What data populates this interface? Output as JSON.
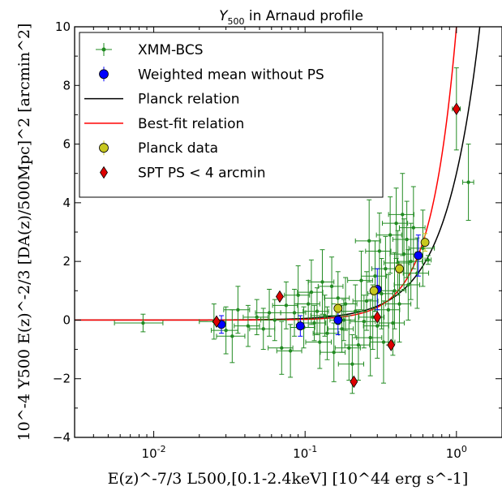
{
  "chart_data": {
    "type": "scatter",
    "title": "Y500 in Arnaud profile",
    "xlabel": "E(z)^-7/3 L500,[0.1-2.4keV] [10^44 erg s^-1]",
    "ylabel": "10^-4 Y500 E(z)^-2/3 [DA(z)/500Mpc]^2 [arcmin^2]",
    "x_scale": "log",
    "xlim": [
      0.003,
      2.0
    ],
    "ylim": [
      -4,
      10
    ],
    "x_ticks": [
      0.01,
      0.1,
      1.0
    ],
    "x_tick_labels": [
      "10^-2",
      "10^-1",
      "10^0"
    ],
    "y_ticks": [
      -4,
      -2,
      0,
      2,
      4,
      6,
      8,
      10
    ],
    "y_tick_labels": [
      "−4",
      "−2",
      "0",
      "2",
      "4",
      "6",
      "8",
      "10"
    ],
    "legend_position": "top-left",
    "series": [
      {
        "name": "XMM-BCS",
        "color": "#228B22",
        "marker": "dot",
        "points": [
          {
            "x": 0.0085,
            "y": -0.1,
            "xerr": 0.003,
            "yerr": 0.3
          },
          {
            "x": 0.025,
            "y": -0.05,
            "xerr": 0.005,
            "yerr": 0.6
          },
          {
            "x": 0.03,
            "y": -0.35,
            "xerr": 0.006,
            "yerr": 0.8
          },
          {
            "x": 0.033,
            "y": -0.55,
            "xerr": 0.007,
            "yerr": 0.9
          },
          {
            "x": 0.036,
            "y": 0.35,
            "xerr": 0.007,
            "yerr": 0.8
          },
          {
            "x": 0.042,
            "y": -0.2,
            "xerr": 0.008,
            "yerr": 0.7
          },
          {
            "x": 0.048,
            "y": 0.1,
            "xerr": 0.009,
            "yerr": 0.6
          },
          {
            "x": 0.053,
            "y": -0.3,
            "xerr": 0.01,
            "yerr": 0.7
          },
          {
            "x": 0.058,
            "y": 0.25,
            "xerr": 0.011,
            "yerr": 0.8
          },
          {
            "x": 0.063,
            "y": 0.0,
            "xerr": 0.012,
            "yerr": 0.7
          },
          {
            "x": 0.07,
            "y": -0.95,
            "xerr": 0.013,
            "yerr": 0.9
          },
          {
            "x": 0.075,
            "y": 0.5,
            "xerr": 0.014,
            "yerr": 0.8
          },
          {
            "x": 0.08,
            "y": -1.05,
            "xerr": 0.015,
            "yerr": 0.9
          },
          {
            "x": 0.085,
            "y": 0.25,
            "xerr": 0.016,
            "yerr": 0.8
          },
          {
            "x": 0.09,
            "y": 0.85,
            "xerr": 0.017,
            "yerr": 1.0
          },
          {
            "x": 0.098,
            "y": -0.25,
            "xerr": 0.018,
            "yerr": 0.7
          },
          {
            "x": 0.105,
            "y": 0.55,
            "xerr": 0.02,
            "yerr": 0.8
          },
          {
            "x": 0.11,
            "y": 0.95,
            "xerr": 0.021,
            "yerr": 1.1
          },
          {
            "x": 0.115,
            "y": -0.1,
            "xerr": 0.022,
            "yerr": 0.6
          },
          {
            "x": 0.12,
            "y": 0.3,
            "xerr": 0.023,
            "yerr": 0.8
          },
          {
            "x": 0.125,
            "y": -0.75,
            "xerr": 0.024,
            "yerr": 0.9
          },
          {
            "x": 0.13,
            "y": 1.3,
            "xerr": 0.025,
            "yerr": 1.1
          },
          {
            "x": 0.135,
            "y": 0.15,
            "xerr": 0.026,
            "yerr": 0.7
          },
          {
            "x": 0.14,
            "y": -0.45,
            "xerr": 0.027,
            "yerr": 0.9
          },
          {
            "x": 0.15,
            "y": 1.15,
            "xerr": 0.028,
            "yerr": 1.0
          },
          {
            "x": 0.155,
            "y": -1.1,
            "xerr": 0.029,
            "yerr": 1.0
          },
          {
            "x": 0.165,
            "y": 0.75,
            "xerr": 0.031,
            "yerr": 0.9
          },
          {
            "x": 0.175,
            "y": -0.3,
            "xerr": 0.033,
            "yerr": 0.8
          },
          {
            "x": 0.18,
            "y": 0.0,
            "xerr": 0.034,
            "yerr": 0.7
          },
          {
            "x": 0.185,
            "y": 0.55,
            "xerr": 0.035,
            "yerr": 0.9
          },
          {
            "x": 0.195,
            "y": -0.95,
            "xerr": 0.037,
            "yerr": 1.1
          },
          {
            "x": 0.205,
            "y": -1.5,
            "xerr": 0.039,
            "yerr": 1.0
          },
          {
            "x": 0.215,
            "y": 0.3,
            "xerr": 0.04,
            "yerr": 0.9
          },
          {
            "x": 0.225,
            "y": -0.85,
            "xerr": 0.042,
            "yerr": 1.2
          },
          {
            "x": 0.235,
            "y": 1.35,
            "xerr": 0.044,
            "yerr": 1.0
          },
          {
            "x": 0.245,
            "y": -0.05,
            "xerr": 0.046,
            "yerr": 0.9
          },
          {
            "x": 0.255,
            "y": 0.65,
            "xerr": 0.048,
            "yerr": 1.0
          },
          {
            "x": 0.265,
            "y": 2.7,
            "xerr": 0.05,
            "yerr": 1.4
          },
          {
            "x": 0.27,
            "y": -0.6,
            "xerr": 0.051,
            "yerr": 1.3
          },
          {
            "x": 0.28,
            "y": 0.1,
            "xerr": 0.053,
            "yerr": 1.1
          },
          {
            "x": 0.29,
            "y": 1.5,
            "xerr": 0.055,
            "yerr": 1.2
          },
          {
            "x": 0.3,
            "y": -0.2,
            "xerr": 0.057,
            "yerr": 1.1
          },
          {
            "x": 0.31,
            "y": 2.35,
            "xerr": 0.059,
            "yerr": 1.3
          },
          {
            "x": 0.32,
            "y": 0.9,
            "xerr": 0.06,
            "yerr": 1.2
          },
          {
            "x": 0.33,
            "y": -0.75,
            "xerr": 0.062,
            "yerr": 1.4
          },
          {
            "x": 0.34,
            "y": 1.75,
            "xerr": 0.064,
            "yerr": 1.1
          },
          {
            "x": 0.355,
            "y": 0.35,
            "xerr": 0.067,
            "yerr": 1.2
          },
          {
            "x": 0.365,
            "y": 2.9,
            "xerr": 0.069,
            "yerr": 1.3
          },
          {
            "x": 0.38,
            "y": -0.1,
            "xerr": 0.072,
            "yerr": 1.1
          },
          {
            "x": 0.39,
            "y": 1.0,
            "xerr": 0.074,
            "yerr": 1.3
          },
          {
            "x": 0.4,
            "y": 3.3,
            "xerr": 0.076,
            "yerr": 1.2
          },
          {
            "x": 0.41,
            "y": 1.95,
            "xerr": 0.078,
            "yerr": 1.1
          },
          {
            "x": 0.42,
            "y": 0.55,
            "xerr": 0.08,
            "yerr": 1.3
          },
          {
            "x": 0.44,
            "y": 3.6,
            "xerr": 0.084,
            "yerr": 1.4
          },
          {
            "x": 0.45,
            "y": 2.25,
            "xerr": 0.086,
            "yerr": 1.2
          },
          {
            "x": 0.47,
            "y": 2.75,
            "xerr": 0.09,
            "yerr": 1.3
          },
          {
            "x": 0.48,
            "y": 1.2,
            "xerr": 0.092,
            "yerr": 1.2
          },
          {
            "x": 0.5,
            "y": 2.0,
            "xerr": 0.095,
            "yerr": 1.3
          },
          {
            "x": 0.52,
            "y": 3.15,
            "xerr": 0.1,
            "yerr": 1.4
          },
          {
            "x": 0.55,
            "y": 1.6,
            "xerr": 0.105,
            "yerr": 1.2
          },
          {
            "x": 0.6,
            "y": 2.45,
            "xerr": 0.115,
            "yerr": 1.3
          },
          {
            "x": 0.65,
            "y": 2.05,
            "xerr": 0.03,
            "yerr": 0.15
          },
          {
            "x": 1.0,
            "y": 7.2,
            "xerr": 0.06,
            "yerr": 1.4
          },
          {
            "x": 1.2,
            "y": 4.7,
            "xerr": 0.1,
            "yerr": 1.3
          }
        ]
      },
      {
        "name": "Weighted mean without PS",
        "color": "#0000ff",
        "marker": "circle",
        "points": [
          {
            "x": 0.028,
            "y": -0.15,
            "yerr": 0.3
          },
          {
            "x": 0.093,
            "y": -0.2,
            "yerr": 0.35
          },
          {
            "x": 0.165,
            "y": 0.0,
            "yerr": 0.5
          },
          {
            "x": 0.3,
            "y": 1.05,
            "yerr": 0.7
          },
          {
            "x": 0.56,
            "y": 2.2,
            "yerr": 0.7
          }
        ]
      },
      {
        "name": "Planck data",
        "color": "#c8c81e",
        "marker": "circle",
        "points": [
          {
            "x": 0.165,
            "y": 0.4,
            "yerr": 0.15
          },
          {
            "x": 0.285,
            "y": 1.0,
            "yerr": 0.15
          },
          {
            "x": 0.42,
            "y": 1.75,
            "yerr": 0.15
          },
          {
            "x": 0.62,
            "y": 2.65,
            "yerr": 0.3
          }
        ]
      },
      {
        "name": "SPT PS < 4 arcmin",
        "color": "#dd0000",
        "marker": "diamond",
        "points": [
          {
            "x": 0.026,
            "y": -0.05
          },
          {
            "x": 0.068,
            "y": 0.8
          },
          {
            "x": 0.21,
            "y": -2.1
          },
          {
            "x": 0.3,
            "y": 0.1
          },
          {
            "x": 0.37,
            "y": -0.85
          },
          {
            "x": 1.0,
            "y": 7.2
          }
        ]
      }
    ],
    "lines": [
      {
        "name": "Planck relation",
        "color": "#000000",
        "relation": "y = 5.0 * x^1.95"
      },
      {
        "name": "Best-fit relation",
        "color": "#ff0000",
        "relation": "y = 10.0 * x^2.6"
      }
    ]
  }
}
